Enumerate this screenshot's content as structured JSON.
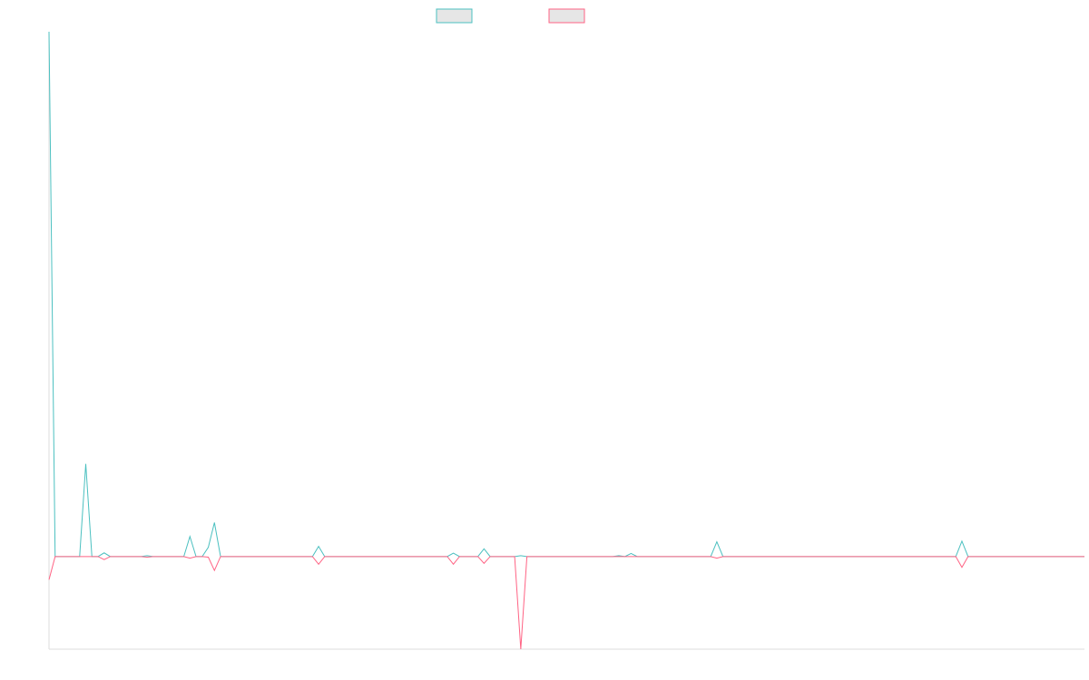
{
  "chart_data": {
    "type": "line",
    "title": "",
    "xlabel": "",
    "ylabel": "",
    "grid": false,
    "legend": {
      "position": "top-center",
      "show_labels": false
    },
    "ylim": [
      -30,
      170
    ],
    "series": [
      {
        "color": "#4bc0c0",
        "fill": "#e6e6e6",
        "values": [
          170,
          0,
          0,
          0,
          0,
          0,
          30,
          0,
          0,
          1.2,
          0,
          0,
          0,
          0,
          0,
          0,
          0.3,
          0,
          0,
          0,
          0,
          0,
          0,
          6.5,
          0,
          0,
          3,
          11,
          0,
          0,
          0,
          0,
          0,
          0,
          0,
          0,
          0,
          0,
          0,
          0,
          0,
          0,
          0,
          0,
          3.3,
          0,
          0,
          0,
          0,
          0,
          0,
          0,
          0,
          0,
          0,
          0,
          0,
          0,
          0,
          0,
          0,
          0,
          0,
          0,
          0,
          0,
          1.1,
          0,
          0,
          0,
          0,
          2.5,
          0,
          0,
          0,
          0,
          0,
          0.3,
          0,
          0,
          0,
          0,
          0,
          0,
          0,
          0,
          0,
          0,
          0,
          0,
          0,
          0,
          0,
          0.3,
          0,
          1,
          0,
          0,
          0,
          0,
          0,
          0,
          0,
          0,
          0,
          0,
          0,
          0,
          0,
          4.8,
          0,
          0,
          0,
          0,
          0,
          0,
          0,
          0,
          0,
          0,
          0,
          0,
          0,
          0,
          0,
          0,
          0,
          0,
          0,
          0,
          0,
          0,
          0,
          0,
          0,
          0,
          0,
          0,
          0,
          0,
          0,
          0,
          0,
          0,
          0,
          0,
          0,
          0,
          0,
          5,
          0,
          0,
          0,
          0,
          0,
          0,
          0,
          0,
          0,
          0,
          0,
          0,
          0,
          0,
          0,
          0,
          0,
          0,
          0,
          0
        ]
      },
      {
        "color": "#ff6384",
        "fill": "#e6e6e6",
        "values": [
          -7.5,
          0,
          0,
          0,
          0,
          0,
          0,
          0,
          0,
          -1,
          0,
          0,
          0,
          0,
          0,
          0,
          -0.2,
          0,
          0,
          0,
          0,
          0,
          0,
          -0.5,
          0,
          0,
          -0.2,
          -4.5,
          0,
          0,
          0,
          0,
          0,
          0,
          0,
          0,
          0,
          0,
          0,
          0,
          0,
          0,
          0,
          0,
          -2.5,
          0,
          0,
          0,
          0,
          0,
          0,
          0,
          0,
          0,
          0,
          0,
          0,
          0,
          0,
          0,
          0,
          0,
          0,
          0,
          0,
          0,
          -2.5,
          0,
          0,
          0,
          0,
          -2.2,
          0,
          0,
          0,
          0,
          0,
          -30,
          0,
          0,
          0,
          0,
          0,
          0,
          0,
          0,
          0,
          0,
          0,
          0,
          0,
          0,
          0,
          0,
          0,
          0,
          0,
          0,
          0,
          0,
          0,
          0,
          0,
          0,
          0,
          0,
          0,
          0,
          0,
          -0.5,
          0,
          0,
          0,
          0,
          0,
          0,
          0,
          0,
          0,
          0,
          0,
          0,
          0,
          0,
          0,
          0,
          0,
          0,
          0,
          0,
          0,
          0,
          0,
          0,
          0,
          0,
          0,
          0,
          0,
          0,
          0,
          0,
          0,
          0,
          0,
          0,
          0,
          0,
          0,
          -3.5,
          0,
          0,
          0,
          0,
          0,
          0,
          0,
          0,
          0,
          0,
          0,
          0,
          0,
          0,
          0,
          0,
          0,
          0,
          0,
          0
        ]
      }
    ]
  }
}
